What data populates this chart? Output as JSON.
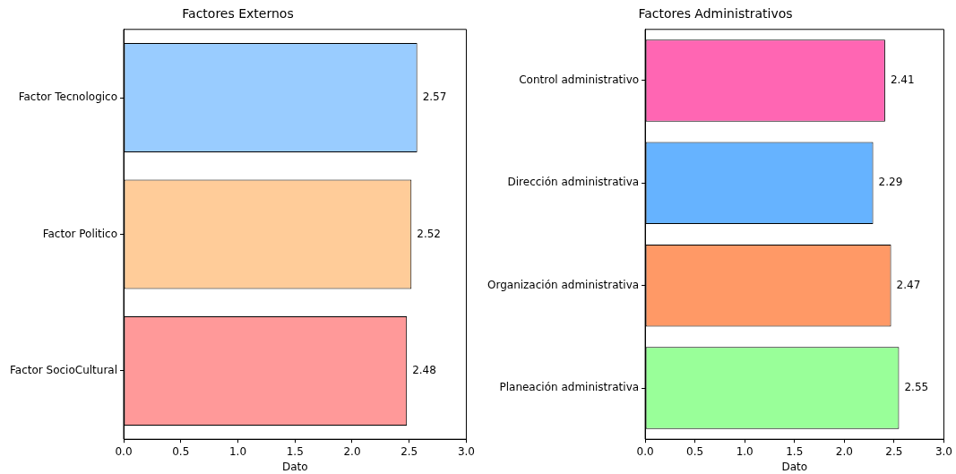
{
  "chart_data": [
    {
      "type": "bar",
      "orientation": "horizontal",
      "title": "Factores Externos",
      "xlabel": "Dato",
      "categories": [
        "Factor Tecnologico",
        "Factor Politico",
        "Factor SocioCultural"
      ],
      "values": [
        2.57,
        2.52,
        2.48
      ],
      "colors": [
        "#99ccff",
        "#ffcc99",
        "#ff9999"
      ],
      "xlim": [
        0,
        3
      ],
      "xticks": [
        {
          "value": 0,
          "label": "0.0"
        },
        0.5,
        {
          "value": 1,
          "label": "1.0"
        },
        1.5,
        {
          "value": 2,
          "label": "2.0"
        },
        2.5,
        {
          "value": 3,
          "label": "3.0"
        }
      ],
      "data_labels": true
    },
    {
      "type": "bar",
      "orientation": "horizontal",
      "title": "Factores Administrativos",
      "xlabel": "Dato",
      "categories": [
        "Control administrativo",
        "Dirección administrativa",
        "Organización administrativa",
        "Planeación administrativa"
      ],
      "values": [
        2.41,
        2.29,
        2.47,
        2.55
      ],
      "colors": [
        "#ff66b3",
        "#66b3ff",
        "#ff9966",
        "#99ff99"
      ],
      "xlim": [
        0,
        3
      ],
      "xticks": [
        {
          "value": 0,
          "label": "0.0"
        },
        0.5,
        {
          "value": 1,
          "label": "1.0"
        },
        1.5,
        {
          "value": 2,
          "label": "2.0"
        },
        2.5,
        {
          "value": 3,
          "label": "3.0"
        }
      ],
      "data_labels": true
    }
  ]
}
